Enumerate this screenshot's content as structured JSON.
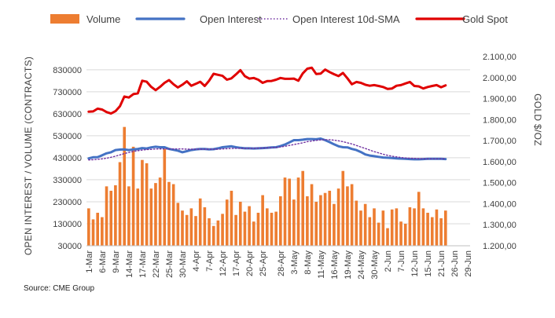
{
  "chart_data": {
    "type": "combo-bar-line",
    "title": "",
    "x_labels": [
      "1-Mar",
      "6-Mar",
      "9-Mar",
      "14-Mar",
      "17-Mar",
      "22-Mar",
      "25-Mar",
      "30-Mar",
      "4-Apr",
      "7-Apr",
      "12-Apr",
      "17-Apr",
      "20-Apr",
      "25-Apr",
      "28-Apr",
      "3-May",
      "8-May",
      "11-May",
      "16-May",
      "19-May",
      "24-May",
      "30-May",
      "2-Jun",
      "7-Jun",
      "12-Jun",
      "15-Jun",
      "21-Jun",
      "26-Jun",
      "29-Jun"
    ],
    "left_axis": {
      "label": "OPEN INTEREST / VOLUME (CONTRACTS)",
      "range": [
        30000,
        890000
      ],
      "ticks": [
        30000,
        130000,
        230000,
        330000,
        430000,
        530000,
        630000,
        730000,
        830000
      ],
      "tick_labels": [
        "30000",
        "130000",
        "230000",
        "330000",
        "430000",
        "530000",
        "630000",
        "730000",
        "830000"
      ]
    },
    "right_axis": {
      "label": "GOLD $/OZ",
      "range": [
        1200,
        2100
      ],
      "ticks": [
        1200,
        1300,
        1400,
        1500,
        1600,
        1700,
        1800,
        1900,
        2000,
        2100
      ],
      "tick_labels": [
        "1.200,00",
        "1.300,00",
        "1.400,00",
        "1.500,00",
        "1.600,00",
        "1.700,00",
        "1.800,00",
        "1.900,00",
        "2.000,00",
        "2.100,00"
      ]
    },
    "legend": {
      "position": "top",
      "entries": [
        {
          "name": "Volume",
          "color": "#ED7D31",
          "style": "bar"
        },
        {
          "name": "Open Interest",
          "color": "#4472C4",
          "style": "line"
        },
        {
          "name": "Open Interest 10d-SMA",
          "color": "#7030A0",
          "style": "dotted"
        },
        {
          "name": "Gold Spot",
          "color": "#E00000",
          "style": "line"
        }
      ]
    },
    "series": [
      {
        "name": "Volume",
        "axis": "left",
        "values": [
          200000,
          150000,
          180000,
          160000,
          300000,
          280000,
          305000,
          410000,
          570000,
          300000,
          480000,
          290000,
          420000,
          405000,
          290000,
          315000,
          340000,
          470000,
          320000,
          310000,
          225000,
          190000,
          170000,
          200000,
          165000,
          245000,
          205000,
          155000,
          120000,
          145000,
          175000,
          240000,
          280000,
          170000,
          230000,
          185000,
          210000,
          140000,
          180000,
          260000,
          200000,
          180000,
          185000,
          255000,
          340000,
          335000,
          240000,
          340000,
          370000,
          255000,
          310000,
          230000,
          260000,
          270000,
          280000,
          220000,
          290000,
          370000,
          300000,
          310000,
          235000,
          190000,
          220000,
          160000,
          200000,
          135000,
          190000,
          110000,
          195000,
          200000,
          140000,
          130000,
          205000,
          200000,
          275000,
          200000,
          180000,
          160000,
          195000,
          155000,
          190000
        ]
      },
      {
        "name": "Open Interest",
        "axis": "left",
        "values": [
          427000,
          432000,
          433000,
          441000,
          450000,
          455000,
          465000,
          467000,
          468000,
          465000,
          468000,
          470000,
          474000,
          472000,
          477000,
          480000,
          478000,
          478000,
          470000,
          466000,
          462000,
          455000,
          460000,
          465000,
          468000,
          470000,
          470000,
          468000,
          469000,
          473000,
          478000,
          480000,
          482000,
          478000,
          475000,
          473000,
          473000,
          472000,
          473000,
          474000,
          475000,
          477000,
          478000,
          483000,
          490000,
          500000,
          510000,
          510000,
          512000,
          515000,
          515000,
          514000,
          517000,
          510000,
          501000,
          491000,
          482000,
          478000,
          477000,
          470000,
          465000,
          456000,
          445000,
          440000,
          437000,
          434000,
          431000,
          430000,
          429000,
          427000,
          426000,
          425000,
          424000,
          423000,
          423000,
          424000,
          425000,
          425000,
          425000,
          425000,
          424000
        ]
      },
      {
        "name": "Open Interest 10d-SMA",
        "axis": "left",
        "values": [
          420000,
          421000,
          423000,
          425000,
          428000,
          432000,
          437000,
          443000,
          449000,
          454000,
          459000,
          462000,
          465000,
          467000,
          468000,
          470000,
          470000,
          470000,
          470000,
          470000,
          470000,
          470000,
          469000,
          469000,
          469000,
          469000,
          469000,
          469000,
          469000,
          469000,
          470000,
          471000,
          472000,
          473000,
          473000,
          473000,
          473000,
          473000,
          474000,
          474000,
          475000,
          476000,
          477000,
          479000,
          482000,
          486000,
          490000,
          494000,
          498000,
          503000,
          506000,
          509000,
          511000,
          512000,
          512000,
          510000,
          507000,
          503000,
          498000,
          493000,
          486000,
          479000,
          472000,
          465000,
          458000,
          452000,
          446000,
          441000,
          437000,
          434000,
          431000,
          429000,
          428000,
          427000,
          426000,
          425000,
          425000,
          425000,
          425000,
          425000,
          425000
        ]
      },
      {
        "name": "Gold Spot",
        "axis": "right",
        "values": [
          1838,
          1839,
          1852,
          1848,
          1836,
          1829,
          1840,
          1864,
          1910,
          1905,
          1921,
          1925,
          1985,
          1980,
          1956,
          1940,
          1956,
          1975,
          1988,
          1968,
          1953,
          1966,
          1982,
          1961,
          1970,
          1980,
          1960,
          1985,
          2018,
          2013,
          2008,
          1990,
          1996,
          2015,
          2035,
          2007,
          1995,
          1998,
          1990,
          1975,
          1983,
          1984,
          1990,
          1998,
          1994,
          1994,
          1995,
          1985,
          2020,
          2042,
          2047,
          2017,
          2019,
          2038,
          2026,
          2016,
          2007,
          2022,
          1996,
          1968,
          1979,
          1975,
          1966,
          1961,
          1964,
          1960,
          1955,
          1946,
          1948,
          1961,
          1964,
          1972,
          1979,
          1960,
          1958,
          1948,
          1955,
          1960,
          1964,
          1954,
          1963
        ]
      }
    ],
    "source": "Source: CME Group"
  }
}
